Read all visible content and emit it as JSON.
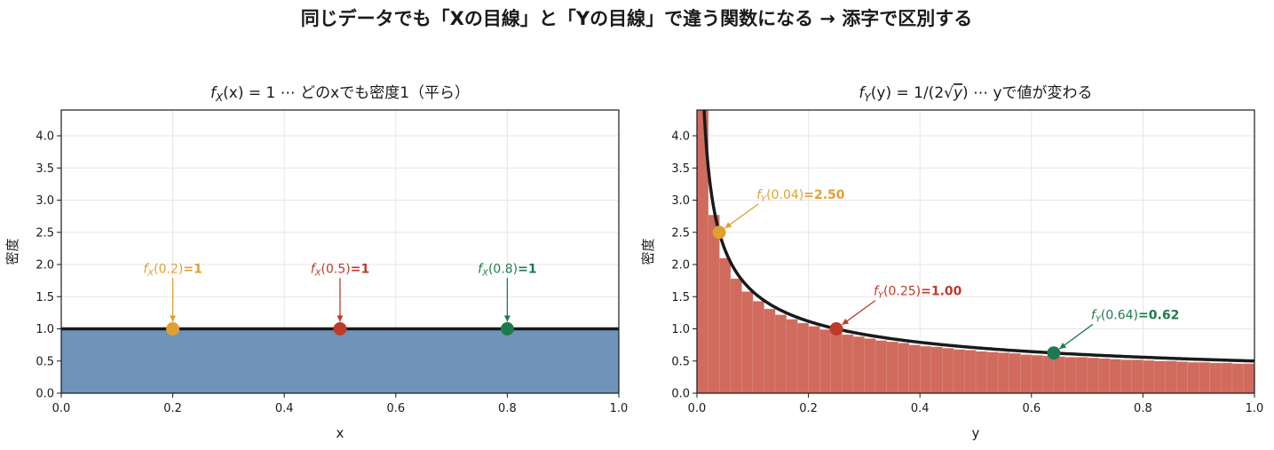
{
  "figure": {
    "suptitle": "同じデータでも「Xの目線」と「Yの目線」で違う関数になる → 添字で区別する"
  },
  "colors": {
    "fill_x": "#7094b9",
    "fill_y": "#d06b5e",
    "curve": "#1a1a1a",
    "orange": "#e0a030",
    "red": "#c0392b",
    "green": "#1e7a4e"
  },
  "chart_data": [
    {
      "type": "area",
      "title": "f_X(x) = 1 ⋯ どのxでも密度1（平ら）",
      "title_parts": {
        "func": "f",
        "sub": "X",
        "arg": "(x) = 1 ⋯ どのxでも密度1（平ら）"
      },
      "xlabel": "x",
      "ylabel": "密度",
      "xlim": [
        0,
        1
      ],
      "ylim": [
        0,
        4.4
      ],
      "xticks": [
        "0.0",
        "0.2",
        "0.4",
        "0.6",
        "0.8",
        "1.0"
      ],
      "yticks": [
        "0.0",
        "0.5",
        "1.0",
        "1.5",
        "2.0",
        "2.5",
        "3.0",
        "3.5",
        "4.0"
      ],
      "grid": true,
      "density": {
        "value": 1.0,
        "x_range": [
          0,
          1
        ]
      },
      "points": [
        {
          "x": 0.2,
          "y": 1.0,
          "label_prefix": "f",
          "label_sub": "X",
          "label_arg": "(0.2)",
          "label_value": "=1",
          "color": "orange",
          "label_pos": [
            0.2,
            1.9
          ]
        },
        {
          "x": 0.5,
          "y": 1.0,
          "label_prefix": "f",
          "label_sub": "X",
          "label_arg": "(0.5)",
          "label_value": "=1",
          "color": "red",
          "label_pos": [
            0.5,
            1.9
          ]
        },
        {
          "x": 0.8,
          "y": 1.0,
          "label_prefix": "f",
          "label_sub": "X",
          "label_arg": "(0.8)",
          "label_value": "=1",
          "color": "green",
          "label_pos": [
            0.8,
            1.9
          ]
        }
      ]
    },
    {
      "type": "line",
      "title": "f_Y(y) = 1/(2√y) ⋯ yで値が変わる",
      "title_parts": {
        "func": "f",
        "sub": "Y",
        "arg1": "(y) = 1/(2",
        "sqrt": "y",
        "arg2": ") ⋯ yで値が変わる"
      },
      "xlabel": "y",
      "ylabel": "密度",
      "xlim": [
        0,
        1
      ],
      "ylim": [
        0,
        4.4
      ],
      "xticks": [
        "0.0",
        "0.2",
        "0.4",
        "0.6",
        "0.8",
        "1.0"
      ],
      "yticks": [
        "0.0",
        "0.5",
        "1.0",
        "1.5",
        "2.0",
        "2.5",
        "3.0",
        "3.5",
        "4.0"
      ],
      "grid": true,
      "histogram": {
        "bin_width": 0.02,
        "values": [
          7.1,
          2.77,
          2.1,
          1.78,
          1.58,
          1.43,
          1.31,
          1.22,
          1.15,
          1.09,
          1.04,
          0.99,
          0.95,
          0.91,
          0.88,
          0.85,
          0.82,
          0.8,
          0.78,
          0.75,
          0.73,
          0.72,
          0.7,
          0.68,
          0.67,
          0.65,
          0.64,
          0.63,
          0.62,
          0.6,
          0.59,
          0.58,
          0.57,
          0.56,
          0.56,
          0.55,
          0.54,
          0.53,
          0.52,
          0.52,
          0.51,
          0.5,
          0.5,
          0.49,
          0.48,
          0.48,
          0.47,
          0.47,
          0.46,
          0.46
        ]
      },
      "points": [
        {
          "x": 0.04,
          "y": 2.5,
          "label_prefix": "f",
          "label_sub": "Y",
          "label_arg": "(0.04)",
          "label_value": "=2.50",
          "color": "orange",
          "label_pos": [
            0.11,
            3.05
          ]
        },
        {
          "x": 0.25,
          "y": 1.0,
          "label_prefix": "f",
          "label_sub": "Y",
          "label_arg": "(0.25)",
          "label_value": "=1.00",
          "color": "red",
          "label_pos": [
            0.32,
            1.55
          ]
        },
        {
          "x": 0.64,
          "y": 0.625,
          "label_prefix": "f",
          "label_sub": "Y",
          "label_arg": "(0.64)",
          "label_value": "=0.62",
          "color": "green",
          "label_pos": [
            0.71,
            1.18
          ]
        }
      ]
    }
  ]
}
